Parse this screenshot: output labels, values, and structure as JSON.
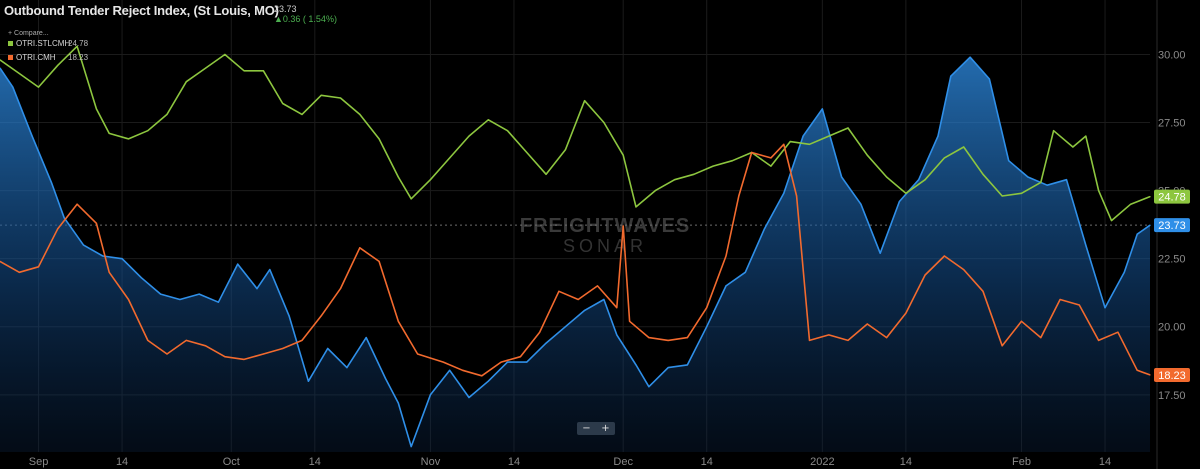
{
  "header": {
    "title": "Outbound Tender Reject Index, (St Louis, MO)",
    "main_value": "23.73",
    "main_change": "▲0.36 ( 1.54%)",
    "compare_label": "+ Compare..."
  },
  "legend": [
    {
      "name": "OTRI.STLCMH",
      "value": "24.78",
      "color": "#8dc63f"
    },
    {
      "name": "OTRI.CMH",
      "value": "18.23",
      "color": "#f26a2e"
    }
  ],
  "watermark": {
    "line1": "FREIGHTWAVES",
    "line2": "SONAR"
  },
  "zoom": {
    "minus": "−",
    "plus": "+"
  },
  "colors": {
    "main": "#2f8fe8",
    "stlcmh": "#8dc63f",
    "cmh": "#f26a2e",
    "background": "#000000"
  },
  "chart_data": {
    "type": "line",
    "x_start": "2021-08-26",
    "x_end": "2022-02-21",
    "x_ticks": [
      {
        "date": "2021-09-01",
        "label": "Sep"
      },
      {
        "date": "2021-09-14",
        "label": "14"
      },
      {
        "date": "2021-10-01",
        "label": "Oct"
      },
      {
        "date": "2021-10-14",
        "label": "14"
      },
      {
        "date": "2021-11-01",
        "label": "Nov"
      },
      {
        "date": "2021-11-14",
        "label": "14"
      },
      {
        "date": "2021-12-01",
        "label": "Dec"
      },
      {
        "date": "2021-12-14",
        "label": "14"
      },
      {
        "date": "2022-01-01",
        "label": "2022"
      },
      {
        "date": "2022-01-14",
        "label": "14"
      },
      {
        "date": "2022-02-01",
        "label": "Feb"
      },
      {
        "date": "2022-02-14",
        "label": "14"
      }
    ],
    "ylim": [
      15.4,
      32.0
    ],
    "y_ticks": [
      17.5,
      20.0,
      22.5,
      25.0,
      27.5,
      30.0
    ],
    "y_tick_labels": [
      "17.50",
      "20.00",
      "22.50",
      "25.00",
      "27.50",
      "30.00"
    ],
    "reference_value": 23.73,
    "series": [
      {
        "name": "OTRI.STLCMH",
        "color": "#8dc63f",
        "last_label": "24.78",
        "points": [
          [
            "2021-08-26",
            29.8
          ],
          [
            "2021-08-29",
            29.3
          ],
          [
            "2021-09-01",
            28.8
          ],
          [
            "2021-09-04",
            29.6
          ],
          [
            "2021-09-07",
            30.3
          ],
          [
            "2021-09-10",
            28.0
          ],
          [
            "2021-09-12",
            27.1
          ],
          [
            "2021-09-15",
            26.9
          ],
          [
            "2021-09-18",
            27.2
          ],
          [
            "2021-09-21",
            27.8
          ],
          [
            "2021-09-24",
            29.0
          ],
          [
            "2021-09-27",
            29.5
          ],
          [
            "2021-09-30",
            30.0
          ],
          [
            "2021-10-03",
            29.4
          ],
          [
            "2021-10-06",
            29.4
          ],
          [
            "2021-10-09",
            28.2
          ],
          [
            "2021-10-12",
            27.8
          ],
          [
            "2021-10-15",
            28.5
          ],
          [
            "2021-10-18",
            28.4
          ],
          [
            "2021-10-21",
            27.8
          ],
          [
            "2021-10-24",
            26.9
          ],
          [
            "2021-10-27",
            25.5
          ],
          [
            "2021-10-29",
            24.7
          ],
          [
            "2021-11-01",
            25.4
          ],
          [
            "2021-11-04",
            26.2
          ],
          [
            "2021-11-07",
            27.0
          ],
          [
            "2021-11-10",
            27.6
          ],
          [
            "2021-11-13",
            27.2
          ],
          [
            "2021-11-16",
            26.4
          ],
          [
            "2021-11-19",
            25.6
          ],
          [
            "2021-11-22",
            26.5
          ],
          [
            "2021-11-25",
            28.3
          ],
          [
            "2021-11-28",
            27.5
          ],
          [
            "2021-12-01",
            26.3
          ],
          [
            "2021-12-03",
            24.4
          ],
          [
            "2021-12-06",
            25.0
          ],
          [
            "2021-12-09",
            25.4
          ],
          [
            "2021-12-12",
            25.6
          ],
          [
            "2021-12-15",
            25.9
          ],
          [
            "2021-12-18",
            26.1
          ],
          [
            "2021-12-21",
            26.4
          ],
          [
            "2021-12-24",
            25.9
          ],
          [
            "2021-12-27",
            26.8
          ],
          [
            "2021-12-30",
            26.7
          ],
          [
            "2022-01-02",
            27.0
          ],
          [
            "2022-01-05",
            27.3
          ],
          [
            "2022-01-08",
            26.3
          ],
          [
            "2022-01-11",
            25.5
          ],
          [
            "2022-01-14",
            24.9
          ],
          [
            "2022-01-17",
            25.4
          ],
          [
            "2022-01-20",
            26.2
          ],
          [
            "2022-01-23",
            26.6
          ],
          [
            "2022-01-26",
            25.6
          ],
          [
            "2022-01-29",
            24.8
          ],
          [
            "2022-02-01",
            24.9
          ],
          [
            "2022-02-04",
            25.3
          ],
          [
            "2022-02-06",
            27.2
          ],
          [
            "2022-02-09",
            26.6
          ],
          [
            "2022-02-11",
            27.0
          ],
          [
            "2022-02-13",
            25.0
          ],
          [
            "2022-02-15",
            23.9
          ],
          [
            "2022-02-18",
            24.5
          ],
          [
            "2022-02-21",
            24.78
          ]
        ]
      },
      {
        "name": "OTRI.CMH",
        "color": "#f26a2e",
        "last_label": "18.23",
        "points": [
          [
            "2021-08-26",
            22.4
          ],
          [
            "2021-08-29",
            22.0
          ],
          [
            "2021-09-01",
            22.2
          ],
          [
            "2021-09-04",
            23.6
          ],
          [
            "2021-09-07",
            24.5
          ],
          [
            "2021-09-10",
            23.8
          ],
          [
            "2021-09-12",
            22.0
          ],
          [
            "2021-09-15",
            21.0
          ],
          [
            "2021-09-18",
            19.5
          ],
          [
            "2021-09-21",
            19.0
          ],
          [
            "2021-09-24",
            19.5
          ],
          [
            "2021-09-27",
            19.3
          ],
          [
            "2021-09-30",
            18.9
          ],
          [
            "2021-10-03",
            18.8
          ],
          [
            "2021-10-06",
            19.0
          ],
          [
            "2021-10-09",
            19.2
          ],
          [
            "2021-10-12",
            19.5
          ],
          [
            "2021-10-15",
            20.4
          ],
          [
            "2021-10-18",
            21.4
          ],
          [
            "2021-10-21",
            22.9
          ],
          [
            "2021-10-24",
            22.4
          ],
          [
            "2021-10-27",
            20.2
          ],
          [
            "2021-10-30",
            19.0
          ],
          [
            "2021-11-03",
            18.7
          ],
          [
            "2021-11-06",
            18.4
          ],
          [
            "2021-11-09",
            18.2
          ],
          [
            "2021-11-12",
            18.7
          ],
          [
            "2021-11-15",
            18.9
          ],
          [
            "2021-11-18",
            19.8
          ],
          [
            "2021-11-21",
            21.3
          ],
          [
            "2021-11-24",
            21.0
          ],
          [
            "2021-11-27",
            21.5
          ],
          [
            "2021-11-30",
            20.7
          ],
          [
            "2021-12-01",
            23.7
          ],
          [
            "2021-12-02",
            20.2
          ],
          [
            "2021-12-05",
            19.6
          ],
          [
            "2021-12-08",
            19.5
          ],
          [
            "2021-12-11",
            19.6
          ],
          [
            "2021-12-14",
            20.7
          ],
          [
            "2021-12-17",
            22.6
          ],
          [
            "2021-12-19",
            24.8
          ],
          [
            "2021-12-21",
            26.4
          ],
          [
            "2021-12-24",
            26.2
          ],
          [
            "2021-12-26",
            26.7
          ],
          [
            "2021-12-28",
            24.8
          ],
          [
            "2021-12-30",
            19.5
          ],
          [
            "2022-01-02",
            19.7
          ],
          [
            "2022-01-05",
            19.5
          ],
          [
            "2022-01-08",
            20.1
          ],
          [
            "2022-01-11",
            19.6
          ],
          [
            "2022-01-14",
            20.5
          ],
          [
            "2022-01-17",
            21.9
          ],
          [
            "2022-01-20",
            22.6
          ],
          [
            "2022-01-23",
            22.1
          ],
          [
            "2022-01-26",
            21.3
          ],
          [
            "2022-01-29",
            19.3
          ],
          [
            "2022-02-01",
            20.2
          ],
          [
            "2022-02-04",
            19.6
          ],
          [
            "2022-02-07",
            21.0
          ],
          [
            "2022-02-10",
            20.8
          ],
          [
            "2022-02-13",
            19.5
          ],
          [
            "2022-02-16",
            19.8
          ],
          [
            "2022-02-19",
            18.4
          ],
          [
            "2022-02-21",
            18.23
          ]
        ]
      },
      {
        "name": "Outbound Tender Reject Index, (St Louis, MO)",
        "color": "#2f8fe8",
        "last_label": "23.73",
        "filled": true,
        "points": [
          [
            "2021-08-26",
            29.5
          ],
          [
            "2021-08-28",
            28.8
          ],
          [
            "2021-08-31",
            27.0
          ],
          [
            "2021-09-03",
            25.3
          ],
          [
            "2021-09-05",
            24.0
          ],
          [
            "2021-09-08",
            23.0
          ],
          [
            "2021-09-11",
            22.6
          ],
          [
            "2021-09-14",
            22.5
          ],
          [
            "2021-09-17",
            21.8
          ],
          [
            "2021-09-20",
            21.2
          ],
          [
            "2021-09-23",
            21.0
          ],
          [
            "2021-09-26",
            21.2
          ],
          [
            "2021-09-29",
            20.9
          ],
          [
            "2021-10-02",
            22.3
          ],
          [
            "2021-10-05",
            21.4
          ],
          [
            "2021-10-07",
            22.1
          ],
          [
            "2021-10-10",
            20.4
          ],
          [
            "2021-10-13",
            18.0
          ],
          [
            "2021-10-16",
            19.2
          ],
          [
            "2021-10-19",
            18.5
          ],
          [
            "2021-10-22",
            19.6
          ],
          [
            "2021-10-25",
            18.1
          ],
          [
            "2021-10-27",
            17.2
          ],
          [
            "2021-10-29",
            15.6
          ],
          [
            "2021-11-01",
            17.5
          ],
          [
            "2021-11-04",
            18.4
          ],
          [
            "2021-11-07",
            17.4
          ],
          [
            "2021-11-10",
            18.0
          ],
          [
            "2021-11-13",
            18.7
          ],
          [
            "2021-11-16",
            18.7
          ],
          [
            "2021-11-19",
            19.4
          ],
          [
            "2021-11-22",
            20.0
          ],
          [
            "2021-11-25",
            20.6
          ],
          [
            "2021-11-28",
            21.0
          ],
          [
            "2021-11-30",
            19.7
          ],
          [
            "2021-12-03",
            18.6
          ],
          [
            "2021-12-05",
            17.8
          ],
          [
            "2021-12-08",
            18.5
          ],
          [
            "2021-12-11",
            18.6
          ],
          [
            "2021-12-14",
            20.0
          ],
          [
            "2021-12-17",
            21.5
          ],
          [
            "2021-12-20",
            22.0
          ],
          [
            "2021-12-23",
            23.6
          ],
          [
            "2021-12-26",
            24.9
          ],
          [
            "2021-12-29",
            27.0
          ],
          [
            "2022-01-01",
            28.0
          ],
          [
            "2022-01-04",
            25.5
          ],
          [
            "2022-01-07",
            24.5
          ],
          [
            "2022-01-10",
            22.7
          ],
          [
            "2022-01-13",
            24.6
          ],
          [
            "2022-01-16",
            25.4
          ],
          [
            "2022-01-19",
            27.0
          ],
          [
            "2022-01-21",
            29.2
          ],
          [
            "2022-01-24",
            29.9
          ],
          [
            "2022-01-27",
            29.1
          ],
          [
            "2022-01-30",
            26.1
          ],
          [
            "2022-02-02",
            25.5
          ],
          [
            "2022-02-05",
            25.2
          ],
          [
            "2022-02-08",
            25.4
          ],
          [
            "2022-02-11",
            23.0
          ],
          [
            "2022-02-14",
            20.7
          ],
          [
            "2022-02-17",
            22.0
          ],
          [
            "2022-02-19",
            23.4
          ],
          [
            "2022-02-21",
            23.73
          ]
        ]
      }
    ]
  }
}
